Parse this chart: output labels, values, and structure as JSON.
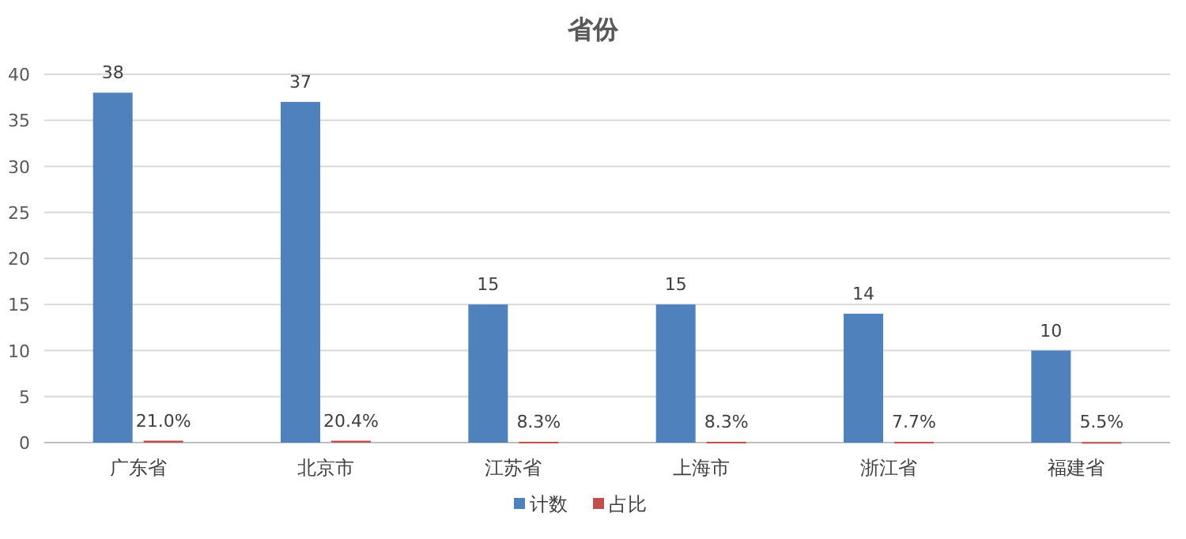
{
  "chart_data": {
    "type": "bar",
    "title": "省份",
    "categories": [
      "广东省",
      "北京市",
      "江苏省",
      "上海市",
      "浙江省",
      "福建省"
    ],
    "series": [
      {
        "name": "计数",
        "color": "#4f81bd",
        "values": [
          38,
          37,
          15,
          15,
          14,
          10
        ],
        "value_labels": [
          "38",
          "37",
          "15",
          "15",
          "14",
          "10"
        ]
      },
      {
        "name": "占比",
        "color": "#c0504d",
        "values": [
          0.21,
          0.204,
          0.083,
          0.083,
          0.077,
          0.055
        ],
        "value_labels": [
          "21.0%",
          "20.4%",
          "8.3%",
          "8.3%",
          "7.7%",
          "5.5%"
        ]
      }
    ],
    "ylim": [
      0,
      40
    ],
    "yticks": [
      0,
      5,
      10,
      15,
      20,
      25,
      30,
      35,
      40
    ],
    "grid": "y",
    "legend": "bottom"
  }
}
